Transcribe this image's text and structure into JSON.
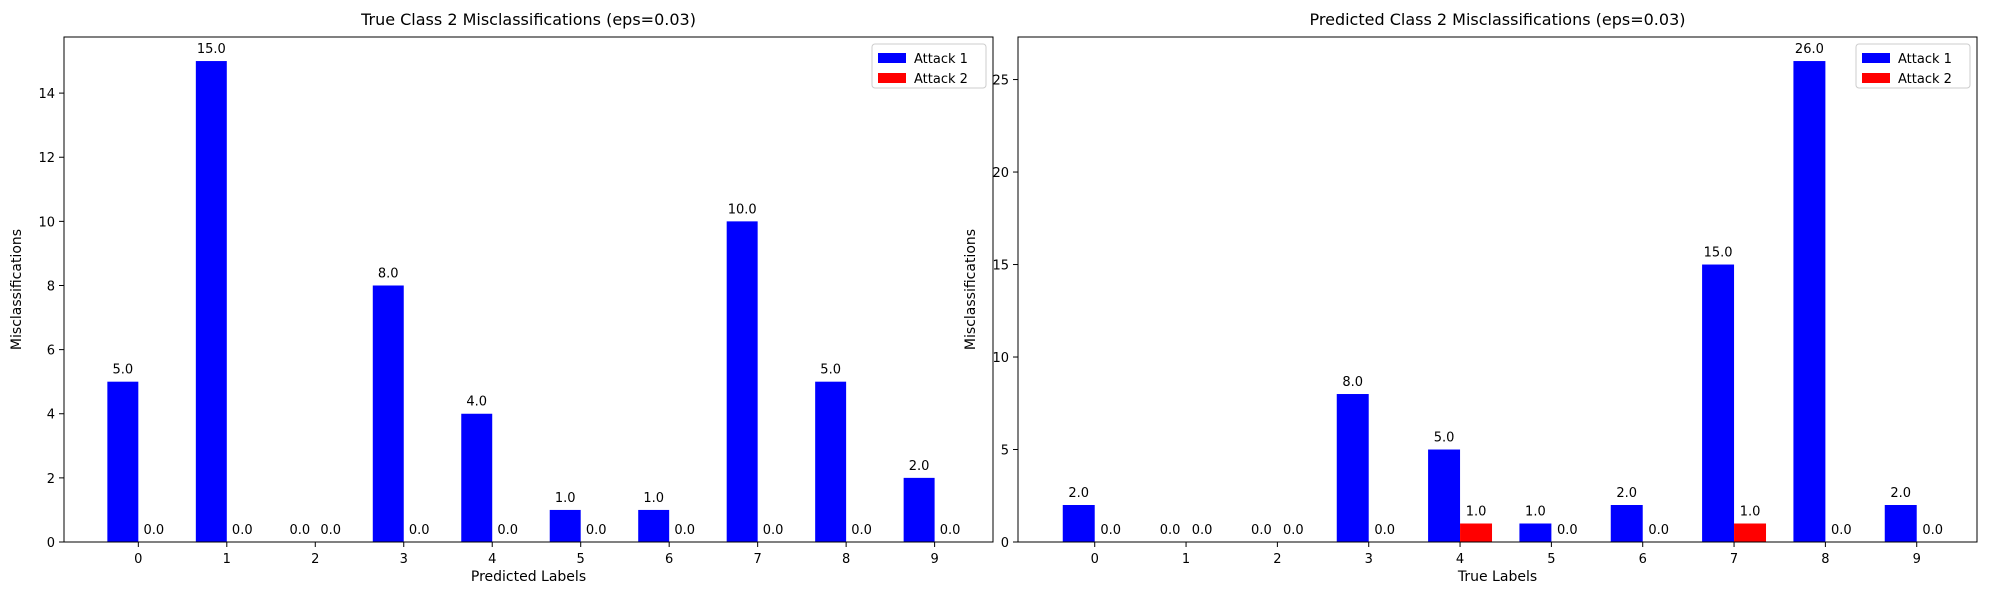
{
  "chart_data": [
    {
      "type": "bar",
      "title": "True Class 2 Misclassifications (eps=0.03)",
      "xlabel": "Predicted Labels",
      "ylabel": "Misclassifications",
      "categories": [
        "0",
        "1",
        "2",
        "3",
        "4",
        "5",
        "6",
        "7",
        "8",
        "9"
      ],
      "series": [
        {
          "name": "Attack 1",
          "color": "#0000ff",
          "values": [
            5,
            15,
            0,
            8,
            4,
            1,
            1,
            10,
            5,
            2
          ]
        },
        {
          "name": "Attack 2",
          "color": "#ff0000",
          "values": [
            0,
            0,
            0,
            0,
            0,
            0,
            0,
            0,
            0,
            0
          ]
        }
      ],
      "ylim": [
        0,
        15.75
      ],
      "yticks": [
        0,
        2,
        4,
        6,
        8,
        10,
        12,
        14
      ],
      "legend": "top-right",
      "grid": false
    },
    {
      "type": "bar",
      "title": "Predicted Class 2 Misclassifications (eps=0.03)",
      "xlabel": "True Labels",
      "ylabel": "Misclassifications",
      "categories": [
        "0",
        "1",
        "2",
        "3",
        "4",
        "5",
        "6",
        "7",
        "8",
        "9"
      ],
      "series": [
        {
          "name": "Attack 1",
          "color": "#0000ff",
          "values": [
            2,
            0,
            0,
            8,
            5,
            1,
            2,
            15,
            26,
            2
          ]
        },
        {
          "name": "Attack 2",
          "color": "#ff0000",
          "values": [
            0,
            0,
            0,
            0,
            1,
            0,
            0,
            1,
            0,
            0
          ]
        }
      ],
      "ylim": [
        0,
        27.3
      ],
      "yticks": [
        0,
        5,
        10,
        15,
        20,
        25
      ],
      "legend": "top-right",
      "grid": false
    }
  ]
}
